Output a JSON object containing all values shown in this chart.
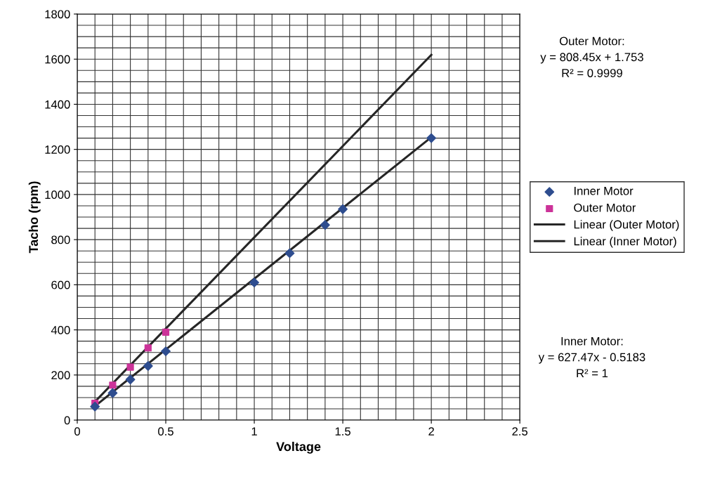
{
  "chart_data": {
    "type": "scatter",
    "xlabel": "Voltage",
    "ylabel": "Tacho (rpm)",
    "xlim": [
      0,
      2.5
    ],
    "xticks": [
      0,
      0.5,
      1,
      1.5,
      2,
      2.5
    ],
    "ylim": [
      0,
      1800
    ],
    "yticks": [
      0,
      200,
      400,
      600,
      800,
      1000,
      1200,
      1400,
      1600,
      1800
    ],
    "grid": true,
    "legend": "right",
    "series": [
      {
        "name": "Inner Motor",
        "marker": "diamond",
        "color": "#2e4d8f",
        "x": [
          0.1,
          0.2,
          0.3,
          0.4,
          0.5,
          1.0,
          1.2,
          1.4,
          1.5,
          2.0
        ],
        "values": [
          60,
          120,
          180,
          240,
          305,
          610,
          740,
          865,
          935,
          1250
        ]
      },
      {
        "name": "Outer Motor",
        "marker": "square",
        "color": "#cc3399",
        "x": [
          0.1,
          0.2,
          0.3,
          0.4,
          0.5
        ],
        "values": [
          75,
          155,
          235,
          320,
          390
        ]
      },
      {
        "name": "Linear (Outer Motor)",
        "type": "line",
        "marker": "none",
        "color": "#262626",
        "x": [
          0.1,
          2.0
        ],
        "values": [
          82,
          1619
        ]
      },
      {
        "name": "Linear (Inner Motor)",
        "type": "line",
        "marker": "none",
        "color": "#262626",
        "x": [
          0.1,
          2.0
        ],
        "values": [
          62,
          1254
        ]
      }
    ],
    "annotations": [
      "Outer Motor:\ny = 808.45x + 1.753\nR² = 0.9999",
      "Inner Motor:\ny = 627.47x - 0.5183\nR² = 1"
    ]
  }
}
